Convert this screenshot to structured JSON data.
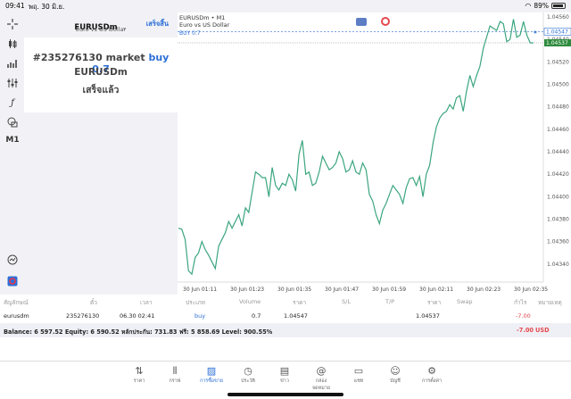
{
  "status_bar": {
    "time": "09:41",
    "date": "พฤ. 30 มิ.ย.",
    "battery": "89%"
  },
  "toolbar": {
    "timeframe": "M1",
    "icons": [
      "crosshair-icon",
      "candles-icon",
      "bar-chart-icon",
      "indicator-sliders-icon",
      "function-icon",
      "objects-icon"
    ]
  },
  "order_panel": {
    "symbol": "EURUSDm",
    "description": "Euro vs US Dollar",
    "done_label": "เสร็จสิ้น",
    "ticket_line": "#235276130 market",
    "side_label": "buy 0.7",
    "symbol_line": "EURUSDm",
    "status": "เสร็จแล้ว"
  },
  "chart": {
    "header_symbol": "EURUSDm • M1",
    "header_desc": "Euro vs US Dollar",
    "trade_line_label": "BUY 0.7",
    "price_tag_blue": "1.04547",
    "price_tag_green": "1.04537",
    "colors": {
      "line": "#3aa57e",
      "buy": "#2c6fd6",
      "current": "#2e8b3d"
    }
  },
  "chart_data": {
    "type": "line",
    "title": "",
    "xlabel": "",
    "ylabel": "",
    "x_ticks": [
      "30 Jun 01:11",
      "30 Jun 01:23",
      "30 Jun 01:35",
      "30 Jun 01:47",
      "30 Jun 01:59",
      "30 Jun 02:11",
      "30 Jun 02:23",
      "30 Jun 02:35"
    ],
    "y_ticks": [
      "1.04560",
      "1.04540",
      "1.04520",
      "1.04500",
      "1.04480",
      "1.04460",
      "1.04440",
      "1.04420",
      "1.04400",
      "1.04380",
      "1.04360",
      "1.04340"
    ],
    "ylim": [
      1.04324,
      1.04564
    ],
    "buy_level": 1.04547,
    "current_price": 1.04537,
    "values": [
      1.04372,
      1.04371,
      1.04362,
      1.04334,
      1.04331,
      1.04346,
      1.0435,
      1.0436,
      1.04353,
      1.04348,
      1.04342,
      1.04336,
      1.04356,
      1.04362,
      1.04368,
      1.04378,
      1.04372,
      1.04378,
      1.04384,
      1.04374,
      1.0439,
      1.04386,
      1.04404,
      1.04422,
      1.0442,
      1.04417,
      1.04417,
      1.044,
      1.04426,
      1.0441,
      1.04406,
      1.04412,
      1.0441,
      1.0442,
      1.04415,
      1.04405,
      1.04438,
      1.0445,
      1.0442,
      1.04422,
      1.0441,
      1.04412,
      1.04422,
      1.04436,
      1.0443,
      1.04424,
      1.04426,
      1.0443,
      1.0444,
      1.04434,
      1.04422,
      1.04424,
      1.04432,
      1.04422,
      1.0442,
      1.0443,
      1.04424,
      1.04402,
      1.04396,
      1.04384,
      1.04376,
      1.04388,
      1.04394,
      1.04402,
      1.0441,
      1.04406,
      1.04402,
      1.04394,
      1.04408,
      1.04416,
      1.04417,
      1.0441,
      1.04418,
      1.044,
      1.0442,
      1.04428,
      1.04448,
      1.04462,
      1.0447,
      1.04474,
      1.04476,
      1.04482,
      1.04478,
      1.04488,
      1.0449,
      1.04476,
      1.04494,
      1.04508,
      1.04498,
      1.04508,
      1.04516,
      1.04532,
      1.04542,
      1.04552,
      1.0455,
      1.04548,
      1.04556,
      1.04554,
      1.04538,
      1.0454,
      1.04558,
      1.04542,
      1.04544,
      1.04556,
      1.04544,
      1.04537,
      1.04537
    ]
  },
  "positions_table": {
    "headers": [
      "สัญลักษณ์",
      "ตั๋ว",
      "เวลา",
      "ประเภท",
      "Volume",
      "ราคา",
      "S/L",
      "T/P",
      "ราคา",
      "Swap",
      "กำไร",
      "หมายเหตุ"
    ],
    "row": {
      "symbol": "eurusdm",
      "ticket": "235276130",
      "time": "06.30 02:41",
      "type": "buy",
      "volume": "0.7",
      "open_price": "1.04547",
      "sl": "",
      "tp": "",
      "price": "1.04537",
      "swap": "",
      "profit": "-7.00",
      "comment": ""
    },
    "balance_line": "Balance: 6 597.52 Equity: 6 590.52 หลักประกัน: 731.83 ฟรี: 5 858.69 Level: 900.55%",
    "total_profit": "-7.00",
    "currency": "USD"
  },
  "tabbar": [
    {
      "label": "ราคา",
      "icon": "quotes-icon"
    },
    {
      "label": "กราฟ",
      "icon": "chart-icon"
    },
    {
      "label": "การซื้อขาย",
      "icon": "trade-icon"
    },
    {
      "label": "ประวัติ",
      "icon": "history-icon"
    },
    {
      "label": "ข่าว",
      "icon": "news-icon"
    },
    {
      "label": "กล่องจดหมาย",
      "icon": "mailbox-icon"
    },
    {
      "label": "แชท",
      "icon": "chat-icon"
    },
    {
      "label": "บัญชี",
      "icon": "account-icon"
    },
    {
      "label": "การตั้งค่า",
      "icon": "settings-icon"
    }
  ]
}
